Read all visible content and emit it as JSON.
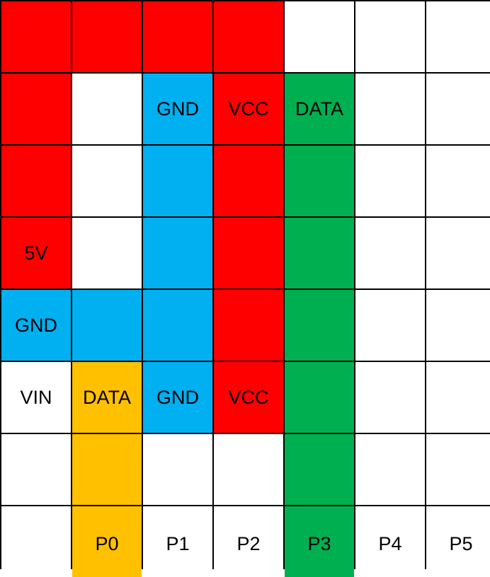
{
  "colors": {
    "red": "#ff0000",
    "blue": "#00b0f0",
    "green": "#00b050",
    "yellow": "#ffc000",
    "white": "#ffffff",
    "grid_line": "#000000"
  },
  "rows": [
    [
      {
        "label": "",
        "color": "red"
      },
      {
        "label": "",
        "color": "red"
      },
      {
        "label": "",
        "color": "red"
      },
      {
        "label": "",
        "color": "red"
      },
      {
        "label": "",
        "color": "white"
      },
      {
        "label": "",
        "color": "white"
      },
      {
        "label": "",
        "color": "white"
      }
    ],
    [
      {
        "label": "",
        "color": "red"
      },
      {
        "label": "",
        "color": "white"
      },
      {
        "label": "GND",
        "color": "blue"
      },
      {
        "label": "VCC",
        "color": "red"
      },
      {
        "label": "DATA",
        "color": "green"
      },
      {
        "label": "",
        "color": "white"
      },
      {
        "label": "",
        "color": "white"
      }
    ],
    [
      {
        "label": "",
        "color": "red"
      },
      {
        "label": "",
        "color": "white"
      },
      {
        "label": "",
        "color": "blue"
      },
      {
        "label": "",
        "color": "red"
      },
      {
        "label": "",
        "color": "green"
      },
      {
        "label": "",
        "color": "white"
      },
      {
        "label": "",
        "color": "white"
      }
    ],
    [
      {
        "label": "5V",
        "color": "red"
      },
      {
        "label": "",
        "color": "white"
      },
      {
        "label": "",
        "color": "blue"
      },
      {
        "label": "",
        "color": "red"
      },
      {
        "label": "",
        "color": "green"
      },
      {
        "label": "",
        "color": "white"
      },
      {
        "label": "",
        "color": "white"
      }
    ],
    [
      {
        "label": "GND",
        "color": "blue"
      },
      {
        "label": "",
        "color": "blue"
      },
      {
        "label": "",
        "color": "blue"
      },
      {
        "label": "",
        "color": "red"
      },
      {
        "label": "",
        "color": "green"
      },
      {
        "label": "",
        "color": "white"
      },
      {
        "label": "",
        "color": "white"
      }
    ],
    [
      {
        "label": "VIN",
        "color": "white"
      },
      {
        "label": "DATA",
        "color": "yellow"
      },
      {
        "label": "GND",
        "color": "blue"
      },
      {
        "label": "VCC",
        "color": "red"
      },
      {
        "label": "",
        "color": "green"
      },
      {
        "label": "",
        "color": "white"
      },
      {
        "label": "",
        "color": "white"
      }
    ],
    [
      {
        "label": "",
        "color": "white"
      },
      {
        "label": "",
        "color": "yellow"
      },
      {
        "label": "",
        "color": "white"
      },
      {
        "label": "",
        "color": "white"
      },
      {
        "label": "",
        "color": "green"
      },
      {
        "label": "",
        "color": "white"
      },
      {
        "label": "",
        "color": "white"
      }
    ],
    [
      {
        "label": "",
        "color": "white"
      },
      {
        "label": "P0",
        "color": "yellow"
      },
      {
        "label": "P1",
        "color": "white"
      },
      {
        "label": "P2",
        "color": "white"
      },
      {
        "label": "P3",
        "color": "green"
      },
      {
        "label": "P4",
        "color": "white"
      },
      {
        "label": "P5",
        "color": "white"
      }
    ]
  ]
}
